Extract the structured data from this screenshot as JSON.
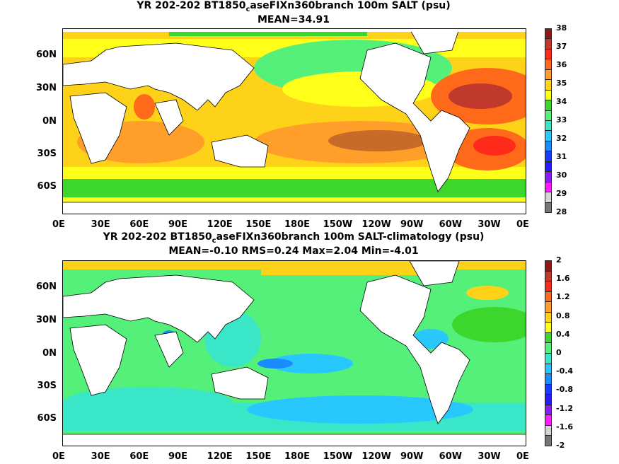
{
  "panel1": {
    "title": "YR 202-202 BT1850",
    "title_sub": "c",
    "title_rest": "aseFIXn360branch 100m SALT (psu)",
    "subtitle": "MEAN=34.91",
    "colorbar_labels": [
      "38",
      "37",
      "36",
      "35",
      "34",
      "33",
      "32",
      "31",
      "30",
      "29",
      "28"
    ],
    "colorbar_colors": [
      "#8b1a1a",
      "#c0392b",
      "#ff2a1a",
      "#ff6a1a",
      "#ff9f2a",
      "#ffd21a",
      "#ffff1a",
      "#3dd62c",
      "#55f07a",
      "#39e6c8",
      "#28c8ff",
      "#1a8cff",
      "#1a3cff",
      "#2a1aff",
      "#8c1aff",
      "#ff1aff",
      "#d4d4d4",
      "#777777"
    ]
  },
  "panel2": {
    "title": "YR 202-202 BT1850",
    "title_sub": "c",
    "title_rest": "aseFIXn360branch 100m SALT-climatology (psu)",
    "subtitle": "MEAN=-0.10   RMS=0.24   Max=2.04   Min=-4.01",
    "colorbar_labels": [
      "2",
      "1.6",
      "1.2",
      "0.8",
      "0.4",
      "0",
      "-0.4",
      "-0.8",
      "-1.2",
      "-1.6",
      "-2"
    ],
    "colorbar_colors": [
      "#8b1a1a",
      "#c0392b",
      "#ff2a1a",
      "#ff6a1a",
      "#ff9f2a",
      "#ffd21a",
      "#ffff1a",
      "#3dd62c",
      "#55f07a",
      "#39e6c8",
      "#28c8ff",
      "#1a8cff",
      "#1a3cff",
      "#2a1aff",
      "#8c1aff",
      "#ff1aff",
      "#d4d4d4",
      "#777777"
    ]
  },
  "axes": {
    "lon_ticks": [
      "0E",
      "30E",
      "60E",
      "90E",
      "120E",
      "150E",
      "180E",
      "150W",
      "120W",
      "90W",
      "60W",
      "30W",
      "0E"
    ],
    "lat_ticks": [
      "60N",
      "30N",
      "0N",
      "30S",
      "60S"
    ]
  }
}
